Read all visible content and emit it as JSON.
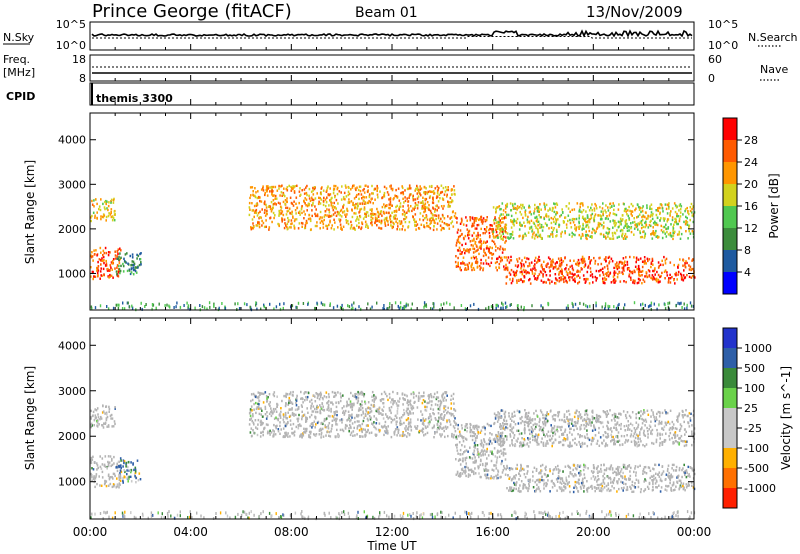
{
  "header": {
    "title": "Prince George (fitACF)",
    "beam": "Beam 01",
    "date": "13/Nov/2009"
  },
  "noise_panel": {
    "left_label": "N.Sky",
    "right_label": "N.Search",
    "left_ticks": [
      "10^5",
      "10^0"
    ],
    "right_ticks": [
      "10^5",
      "10^0"
    ]
  },
  "freq_panel": {
    "left_label_line1": "Freq.",
    "left_label_line2": "[MHz]",
    "right_label": "Nave",
    "left_ticks": [
      "18",
      "8"
    ],
    "right_ticks": [
      "60",
      "0"
    ]
  },
  "cpid_panel": {
    "label": "CPID",
    "value": "themis 3300"
  },
  "colors": {
    "power_scale": [
      "#0000ff",
      "#1e5aa0",
      "#3c8c3c",
      "#50c850",
      "#d2d21e",
      "#ff9600",
      "#ff5a00",
      "#ff0000"
    ],
    "velocity_scale": [
      "#2233cc",
      "#2e5fa8",
      "#3a8a3a",
      "#6ad24a",
      "#c8c8c8",
      "#c8c8c8",
      "#ffb000",
      "#ff7000",
      "#ff2000"
    ],
    "ground_scatter": "#b4b4b4"
  },
  "chart_data": [
    {
      "type": "heatmap",
      "title": "",
      "xlabel": "",
      "ylabel": "Slant Range [km]",
      "x_ticks": [
        "00:00",
        "04:00",
        "08:00",
        "12:00",
        "16:00",
        "20:00",
        "00:00"
      ],
      "xlim_hours": [
        0,
        24
      ],
      "y_ticks": [
        1000,
        2000,
        3000,
        4000
      ],
      "ylim": [
        180,
        4600
      ],
      "colorbar": {
        "label": "Power [dB]",
        "ticks": [
          4,
          8,
          12,
          16,
          20,
          24,
          28
        ],
        "range": [
          0,
          32
        ]
      },
      "regions": [
        {
          "t_start": 0.0,
          "t_end": 1.2,
          "r_low": 900,
          "r_high": 1600,
          "value_db": 26
        },
        {
          "t_start": 0.0,
          "t_end": 1.0,
          "r_low": 2200,
          "r_high": 2700,
          "value_db": 20
        },
        {
          "t_start": 1.0,
          "t_end": 2.0,
          "r_low": 1000,
          "r_high": 1500,
          "value_db": 10
        },
        {
          "t_start": 6.3,
          "t_end": 14.5,
          "r_low": 2000,
          "r_high": 3000,
          "value_db": 22
        },
        {
          "t_start": 14.5,
          "t_end": 16.5,
          "r_low": 1100,
          "r_high": 2300,
          "value_db": 25
        },
        {
          "t_start": 16.5,
          "t_end": 24.0,
          "r_low": 800,
          "r_high": 1400,
          "value_db": 27
        },
        {
          "t_start": 16.0,
          "t_end": 24.0,
          "r_low": 1800,
          "r_high": 2600,
          "value_db": 18
        }
      ]
    },
    {
      "type": "heatmap",
      "title": "",
      "xlabel": "Time UT",
      "ylabel": "Slant Range [km]",
      "x_ticks": [
        "00:00",
        "04:00",
        "08:00",
        "12:00",
        "16:00",
        "20:00",
        "00:00"
      ],
      "xlim_hours": [
        0,
        24
      ],
      "y_ticks": [
        1000,
        2000,
        3000,
        4000
      ],
      "ylim": [
        180,
        4600
      ],
      "colorbar": {
        "label": "Velocity [m s^-1]",
        "ticks": [
          1000,
          500,
          100,
          25,
          -25,
          -100,
          -500,
          -1000
        ],
        "range": [
          -1000,
          1000
        ]
      },
      "regions": [
        {
          "t_start": 0.0,
          "t_end": 1.2,
          "r_low": 900,
          "r_high": 1600,
          "value_ms": 0,
          "ground_scatter": true
        },
        {
          "t_start": 0.0,
          "t_end": 1.0,
          "r_low": 2200,
          "r_high": 2700,
          "value_ms": 0,
          "ground_scatter": true
        },
        {
          "t_start": 1.0,
          "t_end": 2.0,
          "r_low": 1000,
          "r_high": 1500,
          "value_ms": 50
        },
        {
          "t_start": 6.3,
          "t_end": 14.5,
          "r_low": 2000,
          "r_high": 3000,
          "value_ms": 0,
          "ground_scatter": true
        },
        {
          "t_start": 14.5,
          "t_end": 16.5,
          "r_low": 1100,
          "r_high": 2300,
          "value_ms": 0,
          "ground_scatter": true
        },
        {
          "t_start": 16.5,
          "t_end": 24.0,
          "r_low": 800,
          "r_high": 1400,
          "value_ms": 0,
          "ground_scatter": true
        },
        {
          "t_start": 16.0,
          "t_end": 24.0,
          "r_low": 1800,
          "r_high": 2600,
          "value_ms": 0,
          "ground_scatter": true
        }
      ]
    }
  ]
}
